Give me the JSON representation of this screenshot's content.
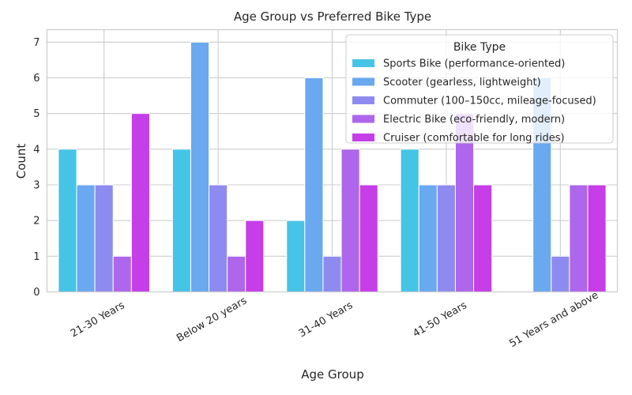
{
  "chart_data": {
    "type": "bar",
    "title": "Age Group vs Preferred Bike Type",
    "xlabel": "Age Group",
    "ylabel": "Count",
    "ylim": [
      0,
      7.35
    ],
    "yticks": [
      "0",
      "1",
      "2",
      "3",
      "4",
      "5",
      "6",
      "7"
    ],
    "grid": true,
    "legend_position": "top-right",
    "legend_title": "Bike Type",
    "categories": [
      "21-30 Years",
      "Below 20 years",
      "31-40 Years",
      "41-50 Years",
      "51 Years and above"
    ],
    "series": [
      {
        "name": "Sports Bike (performance-oriented)",
        "color": "#45c4e6",
        "values": [
          4,
          4,
          2,
          4,
          0
        ]
      },
      {
        "name": "Scooter (gearless, lightweight)",
        "color": "#6aa8f0",
        "values": [
          3,
          7,
          6,
          3,
          6
        ]
      },
      {
        "name": "Commuter (100–150cc, mileage-focused)",
        "color": "#8e8bf0",
        "values": [
          3,
          3,
          1,
          3,
          1
        ]
      },
      {
        "name": "Electric Bike (eco-friendly, modern)",
        "color": "#ad66ec",
        "values": [
          1,
          1,
          4,
          5,
          3
        ]
      },
      {
        "name": "Cruiser (comfortable for long rides)",
        "color": "#c53ee8",
        "values": [
          5,
          2,
          3,
          3,
          3
        ]
      }
    ]
  }
}
